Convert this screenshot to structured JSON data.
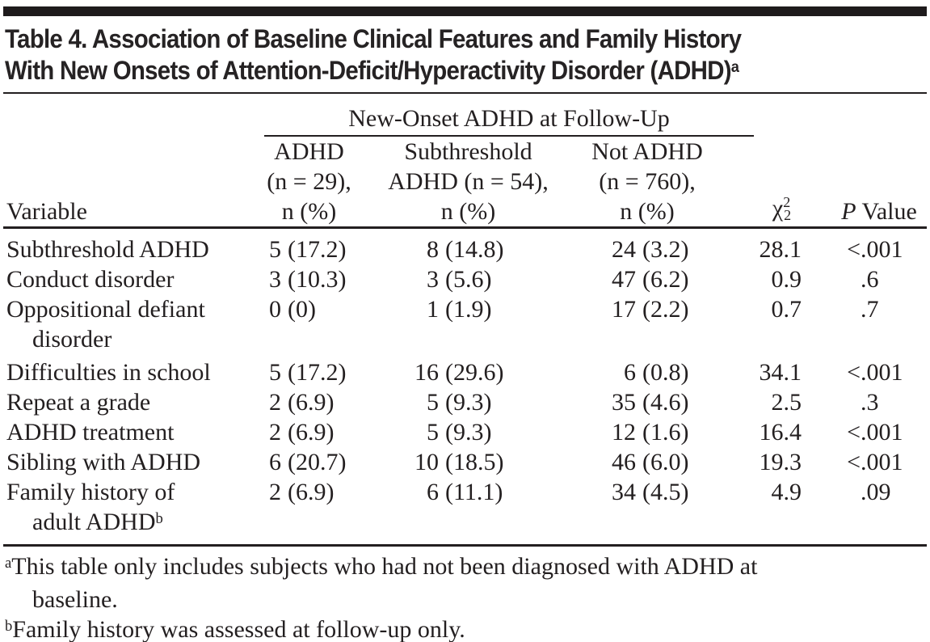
{
  "title": {
    "line1": "Table 4. Association of Baseline Clinical Features and Family History",
    "line2": "With New Onsets of Attention-Deficit/Hyperactivity Disorder (ADHD)",
    "superscript": "a"
  },
  "table": {
    "spanner": "New-Onset ADHD at Follow-Up",
    "col_headers": {
      "variable": "Variable",
      "col1_line1": "ADHD",
      "col1_line2": "(n = 29),",
      "col1_line3": "n (%)",
      "col2_line1": "Subthreshold",
      "col2_line2": "ADHD (n = 54),",
      "col2_line3": "n (%)",
      "col3_line1": "Not ADHD",
      "col3_line2": "(n = 760),",
      "col3_line3": "n (%)",
      "chi_base": "χ",
      "chi_sup": "2",
      "chi_sub": "2",
      "p_italic": "P",
      "p_rest": "Value"
    },
    "rows": [
      {
        "v1": "Subthreshold ADHD",
        "v2": "",
        "v2sup": "",
        "n1": "5",
        "p1": "(17.2)",
        "n2": "8",
        "p2": "(14.8)",
        "n3": "24",
        "p3": "(3.2)",
        "chi": "28.1",
        "p_pre": "<",
        "p_val": ".001"
      },
      {
        "v1": "Conduct disorder",
        "v2": "",
        "v2sup": "",
        "n1": "3",
        "p1": "(10.3)",
        "n2": "3",
        "p2": "(5.6)",
        "n3": "47",
        "p3": "(6.2)",
        "chi": "0.9",
        "p_pre": "",
        "p_val": ".6"
      },
      {
        "v1": "Oppositional defiant",
        "v2": "disorder",
        "v2sup": "",
        "n1": "0",
        "p1": "(0)",
        "n2": "1",
        "p2": "(1.9)",
        "n3": "17",
        "p3": "(2.2)",
        "chi": "0.7",
        "p_pre": "",
        "p_val": ".7"
      },
      {
        "v1": "Difficulties in school",
        "v2": "",
        "v2sup": "",
        "n1": "5",
        "p1": "(17.2)",
        "n2": "16",
        "p2": "(29.6)",
        "n3": "6",
        "p3": "(0.8)",
        "chi": "34.1",
        "p_pre": "<",
        "p_val": ".001"
      },
      {
        "v1": "Repeat a grade",
        "v2": "",
        "v2sup": "",
        "n1": "2",
        "p1": "(6.9)",
        "n2": "5",
        "p2": "(9.3)",
        "n3": "35",
        "p3": "(4.6)",
        "chi": "2.5",
        "p_pre": "",
        "p_val": ".3"
      },
      {
        "v1": "ADHD treatment",
        "v2": "",
        "v2sup": "",
        "n1": "2",
        "p1": "(6.9)",
        "n2": "5",
        "p2": "(9.3)",
        "n3": "12",
        "p3": "(1.6)",
        "chi": "16.4",
        "p_pre": "<",
        "p_val": ".001"
      },
      {
        "v1": "Sibling with ADHD",
        "v2": "",
        "v2sup": "",
        "n1": "6",
        "p1": "(20.7)",
        "n2": "10",
        "p2": "(18.5)",
        "n3": "46",
        "p3": "(6.0)",
        "chi": "19.3",
        "p_pre": "<",
        "p_val": ".001"
      },
      {
        "v1": "Family history of",
        "v2": "adult ADHD",
        "v2sup": "b",
        "n1": "2",
        "p1": "(6.9)",
        "n2": "6",
        "p2": "(11.1)",
        "n3": "34",
        "p3": "(4.5)",
        "chi": "4.9",
        "p_pre": "",
        "p_val": ".09"
      }
    ]
  },
  "footnotes": [
    {
      "sup": "a",
      "line1": "This table only includes subjects who had not been diagnosed with ADHD at",
      "line2": "baseline."
    },
    {
      "sup": "b",
      "line1": "Family history was assessed at follow-up only.",
      "line2": ""
    }
  ]
}
